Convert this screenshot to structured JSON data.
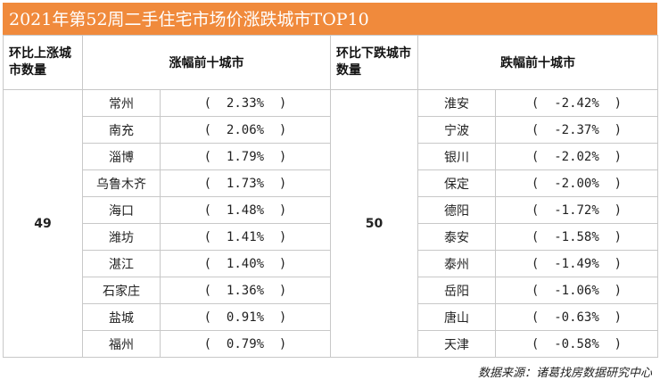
{
  "title": "2021年第52周二手住宅市场价涨跌城市TOP10",
  "headers": {
    "up_count": "环比上涨城市数量",
    "up_top": "涨幅前十城市",
    "down_count": "环比下跌城市数量",
    "down_top": "跌幅前十城市"
  },
  "up_count_value": "49",
  "down_count_value": "50",
  "rows": [
    {
      "up_city": "常州",
      "up_val": "(  2.33%  )",
      "down_city": "淮安",
      "down_val": "(  -2.42%  )"
    },
    {
      "up_city": "南充",
      "up_val": "(  2.06%  )",
      "down_city": "宁波",
      "down_val": "(  -2.37%  )"
    },
    {
      "up_city": "淄博",
      "up_val": "(  1.79%  )",
      "down_city": "银川",
      "down_val": "(  -2.02%  )"
    },
    {
      "up_city": "乌鲁木齐",
      "up_val": "(  1.73%  )",
      "down_city": "保定",
      "down_val": "(  -2.00%  )"
    },
    {
      "up_city": "海口",
      "up_val": "(  1.48%  )",
      "down_city": "德阳",
      "down_val": "(  -1.72%  )"
    },
    {
      "up_city": "潍坊",
      "up_val": "(  1.41%  )",
      "down_city": "泰安",
      "down_val": "(  -1.58%  )"
    },
    {
      "up_city": "湛江",
      "up_val": "(  1.40%  )",
      "down_city": "泰州",
      "down_val": "(  -1.49%  )"
    },
    {
      "up_city": "石家庄",
      "up_val": "(  1.36%  )",
      "down_city": "岳阳",
      "down_val": "(  -1.06%  )"
    },
    {
      "up_city": "盐城",
      "up_val": "(  0.91%  )",
      "down_city": "唐山",
      "down_val": "(  -0.63%  )"
    },
    {
      "up_city": "福州",
      "up_val": "(  0.79%  )",
      "down_city": "天津",
      "down_val": "(  -0.58%  )"
    }
  ],
  "source": "数据来源：诸葛找房数据研究中心",
  "colors": {
    "title_bg": "#f08a3c",
    "up_value": "#2f5f9e",
    "down_value": "#e8702a",
    "border": "#c8c8c8"
  }
}
